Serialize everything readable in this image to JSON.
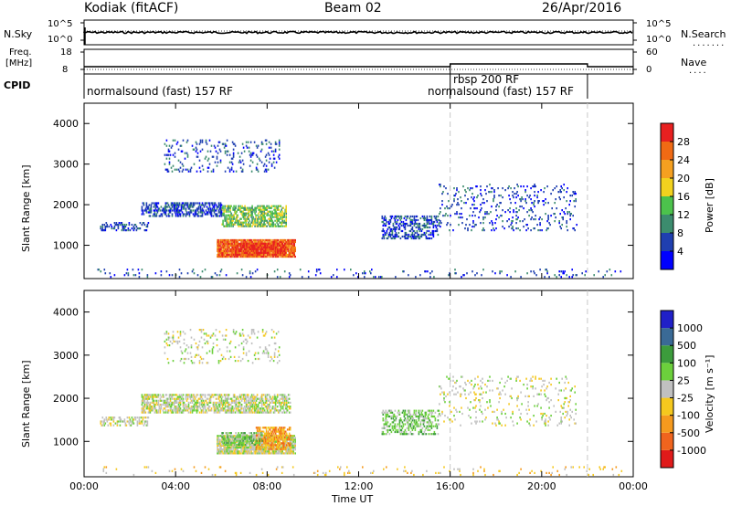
{
  "header": {
    "station": "Kodiak (fitACF)",
    "beam": "Beam 02",
    "date": "26/Apr/2016"
  },
  "top_panels": {
    "nsky_label": "N.Sky",
    "nsky_ticks": [
      "10^5",
      "10^0"
    ],
    "nsearch_label": "N.Search",
    "nsearch_ticks": [
      "10^5",
      "10^0"
    ],
    "freq_label": "Freq.",
    "freq_unit": "[MHz]",
    "freq_ticks": [
      "18",
      "8"
    ],
    "nave_label": "Nave",
    "nave_ticks": [
      "60",
      "0"
    ],
    "cpid_label": "CPID",
    "cpid_segments": [
      {
        "text": "normalsound (fast) 157 RF",
        "start_hour": 0,
        "end_hour": 16
      },
      {
        "text": "rbsp 200 RF",
        "start_hour": 16,
        "end_hour": 22
      },
      {
        "text": "normalsound (fast) 157 RF",
        "start_hour": 16,
        "end_hour": 22
      }
    ]
  },
  "chart_data": [
    {
      "type": "heatmap",
      "name": "power",
      "xlabel": "Time UT",
      "ylabel": "Slant Range [km]",
      "xlim": [
        0,
        24
      ],
      "ylim": [
        180,
        4500
      ],
      "xticks": [
        "00:00",
        "04:00",
        "08:00",
        "12:00",
        "16:00",
        "20:00",
        "00:00"
      ],
      "yticks": [
        1000,
        2000,
        3000,
        4000
      ],
      "colorbar": {
        "label": "Power [dB]",
        "ticks": [
          4,
          8,
          12,
          16,
          20,
          24,
          28
        ],
        "colors": [
          "#0000ff",
          "#1f3fb0",
          "#3c8c6e",
          "#4cc24c",
          "#f2d21e",
          "#f5a020",
          "#f06a14",
          "#e82020"
        ]
      },
      "regions": [
        {
          "t0": 5.8,
          "t1": 9.2,
          "r0": 700,
          "r1": 1150,
          "level": 6,
          "density": 0.85
        },
        {
          "t0": 6.5,
          "t1": 8.8,
          "r0": 750,
          "r1": 1050,
          "level": 7,
          "density": 0.6
        },
        {
          "t0": 6.0,
          "t1": 8.8,
          "r0": 1450,
          "r1": 1950,
          "level": 3,
          "density": 0.55
        },
        {
          "t0": 2.5,
          "t1": 6.0,
          "r0": 1700,
          "r1": 2050,
          "level": 1,
          "density": 0.5
        },
        {
          "t0": 0.7,
          "t1": 2.8,
          "r0": 1350,
          "r1": 1550,
          "level": 1,
          "density": 0.35
        },
        {
          "t0": 3.5,
          "t1": 8.5,
          "r0": 2800,
          "r1": 3600,
          "level": 1,
          "density": 0.12
        },
        {
          "t0": 13.0,
          "t1": 15.5,
          "r0": 1150,
          "r1": 1700,
          "level": 1,
          "density": 0.4
        },
        {
          "t0": 15.5,
          "t1": 21.5,
          "r0": 1350,
          "r1": 2500,
          "level": 1,
          "density": 0.1
        },
        {
          "t0": 0.5,
          "t1": 23.5,
          "r0": 200,
          "r1": 400,
          "level": 1,
          "density": 0.06
        }
      ]
    },
    {
      "type": "heatmap",
      "name": "velocity",
      "xlabel": "Time UT",
      "ylabel": "Slant Range [km]",
      "xlim": [
        0,
        24
      ],
      "ylim": [
        180,
        4500
      ],
      "xticks": [
        "00:00",
        "04:00",
        "08:00",
        "12:00",
        "16:00",
        "20:00",
        "00:00"
      ],
      "yticks": [
        1000,
        2000,
        3000,
        4000
      ],
      "colorbar": {
        "label": "Velocity [m s⁻¹]",
        "ticks": [
          1000,
          500,
          100,
          25,
          -25,
          -100,
          -500,
          -1000
        ],
        "colors": [
          "#2020c8",
          "#3a6a96",
          "#3c9c3c",
          "#6cd03c",
          "#c0c0c0",
          "#f5c81e",
          "#f59a1e",
          "#f0641e",
          "#e01a1a"
        ]
      },
      "regions": [
        {
          "t0": 5.8,
          "t1": 9.2,
          "r0": 700,
          "r1": 1150,
          "level": 4,
          "density": 0.8
        },
        {
          "t0": 7.5,
          "t1": 9.0,
          "r0": 800,
          "r1": 1300,
          "level": 6,
          "density": 0.6
        },
        {
          "t0": 6.0,
          "t1": 7.8,
          "r0": 900,
          "r1": 1200,
          "level": 3,
          "density": 0.5
        },
        {
          "t0": 2.5,
          "t1": 9.0,
          "r0": 1650,
          "r1": 2100,
          "level": 4,
          "density": 0.55
        },
        {
          "t0": 0.7,
          "t1": 2.8,
          "r0": 1350,
          "r1": 1550,
          "level": 4,
          "density": 0.35
        },
        {
          "t0": 13.0,
          "t1": 15.5,
          "r0": 1150,
          "r1": 1700,
          "level": 3,
          "density": 0.35
        },
        {
          "t0": 3.5,
          "t1": 8.5,
          "r0": 2800,
          "r1": 3600,
          "level": 4,
          "density": 0.1
        },
        {
          "t0": 15.5,
          "t1": 21.5,
          "r0": 1350,
          "r1": 2500,
          "level": 4,
          "density": 0.08
        },
        {
          "t0": 0.5,
          "t1": 23.5,
          "r0": 200,
          "r1": 400,
          "level": 5,
          "density": 0.05
        }
      ]
    }
  ]
}
